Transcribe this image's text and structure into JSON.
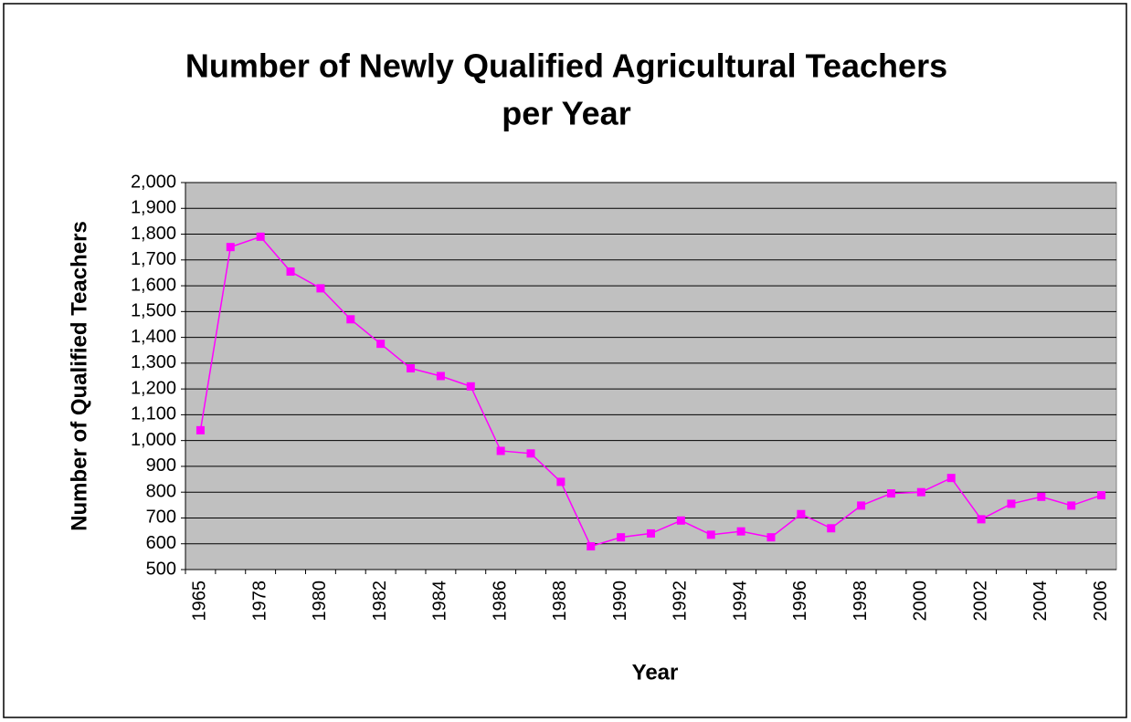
{
  "chart_data": {
    "type": "line",
    "title": [
      "Number of Newly Qualified Agricultural Teachers",
      "per Year"
    ],
    "x_label": "Year",
    "y_label": "Number of Qualified Teachers",
    "categories": [
      "1965",
      null,
      "1978",
      null,
      "1980",
      null,
      "1982",
      null,
      "1984",
      null,
      "1986",
      null,
      "1988",
      null,
      "1990",
      null,
      "1992",
      null,
      "1994",
      null,
      "1996",
      null,
      "1998",
      null,
      "2000",
      null,
      "2002",
      null,
      "2004",
      null,
      "2006"
    ],
    "series": [
      {
        "name": "Number of Qualified Teachers",
        "color": "#ff00ff",
        "values": [
          1040,
          1750,
          1790,
          1655,
          1590,
          1470,
          1375,
          1280,
          1250,
          1210,
          960,
          950,
          840,
          590,
          625,
          640,
          690,
          635,
          648,
          625,
          715,
          660,
          748,
          795,
          800,
          855,
          695,
          755,
          782,
          748,
          788
        ]
      }
    ],
    "ylim": [
      500,
      2000
    ],
    "yticks": [
      500,
      600,
      700,
      800,
      900,
      {
        "value": 1000,
        "label": "1,000"
      },
      {
        "value": 1100,
        "label": "1,100"
      },
      {
        "value": 1200,
        "label": "1,200"
      },
      {
        "value": 1300,
        "label": "1,300"
      },
      {
        "value": 1400,
        "label": "1,400"
      },
      {
        "value": 1500,
        "label": "1,500"
      },
      {
        "value": 1600,
        "label": "1,600"
      },
      {
        "value": 1700,
        "label": "1,700"
      },
      {
        "value": 1800,
        "label": "1,800"
      },
      {
        "value": 1900,
        "label": "1,900"
      },
      {
        "value": 2000,
        "label": "2,000"
      }
    ],
    "grid": true,
    "plot_background": "#c0c0c0"
  }
}
